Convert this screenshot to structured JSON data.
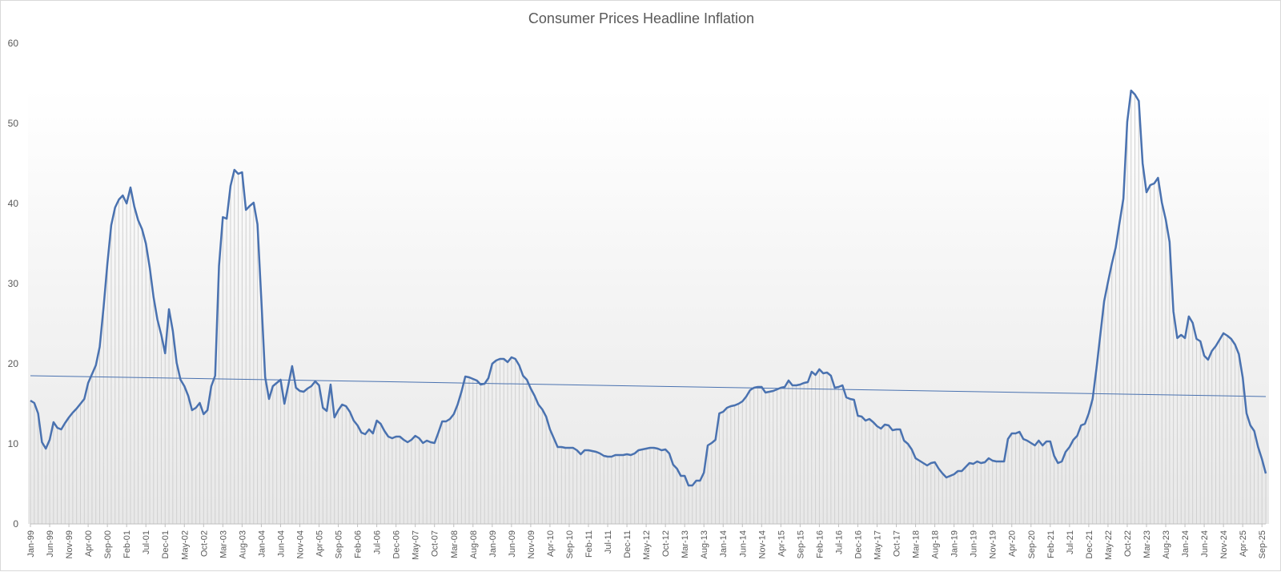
{
  "chart_data": {
    "type": "area",
    "title": "Consumer Prices Headline Inflation",
    "xlabel": "",
    "ylabel": "",
    "ylim": [
      0,
      60
    ],
    "yticks": [
      0,
      10,
      20,
      30,
      40,
      50,
      60
    ],
    "grid": false,
    "legend": "none",
    "line_color": "#4a72b0",
    "fill_color": "#d0d0d0",
    "x_tick_labels": [
      "Jan-99",
      "Jun-99",
      "Nov-99",
      "Apr-00",
      "Sep-00",
      "Feb-01",
      "Jul-01",
      "Dec-01",
      "May-02",
      "Oct-02",
      "Mar-03",
      "Aug-03",
      "Jan-04",
      "Jun-04",
      "Nov-04",
      "Apr-05",
      "Sep-05",
      "Feb-06",
      "Jul-06",
      "Dec-06",
      "May-07",
      "Oct-07",
      "Mar-08",
      "Aug-08",
      "Jan-09",
      "Jun-09",
      "Nov-09",
      "Apr-10",
      "Sep-10",
      "Feb-11",
      "Jul-11",
      "Dec-11",
      "May-12",
      "Oct-12",
      "Mar-13",
      "Aug-13",
      "Jan-14",
      "Jun-14",
      "Nov-14",
      "Apr-15",
      "Sep-15",
      "Feb-16",
      "Jul-16",
      "Dec-16",
      "May-17",
      "Oct-17",
      "Mar-18",
      "Aug-18",
      "Jan-19",
      "Jun-19",
      "Nov-19",
      "Apr-20",
      "Sep-20",
      "Feb-21",
      "Jul-21",
      "Dec-21",
      "May-22",
      "Oct-22",
      "Mar-23",
      "Aug-23",
      "Jan-24",
      "Jun-24",
      "Nov-24",
      "Apr-25",
      "Sep-25"
    ],
    "x_start": "1999-01",
    "series": [
      {
        "values": [
          15.4,
          15.1,
          13.8,
          10.2,
          9.4,
          10.5,
          12.7,
          12.0,
          11.8,
          12.6,
          13.3,
          13.9,
          14.4,
          15.0,
          15.6,
          17.6,
          18.7,
          19.8,
          22.1,
          27.0,
          32.5,
          37.3,
          39.5,
          40.5,
          41.0,
          40.0,
          42.0,
          39.6,
          37.9,
          36.8,
          35.0,
          32.0,
          28.3,
          25.5,
          23.6,
          21.3,
          26.8,
          24.1,
          20.1,
          18.0,
          17.2,
          16.0,
          14.2,
          14.5,
          15.1,
          13.7,
          14.2,
          17.2,
          18.5,
          32.2,
          38.3,
          38.1,
          42.2,
          44.2,
          43.7,
          43.9,
          39.2,
          39.7,
          40.1,
          37.4,
          28.0,
          18.3,
          15.6,
          17.2,
          17.6,
          18.0,
          15.0,
          17.3,
          19.7,
          17.0,
          16.6,
          16.5,
          16.9,
          17.2,
          17.8,
          17.3,
          14.5,
          14.1,
          17.4,
          13.3,
          14.2,
          14.9,
          14.7,
          14.0,
          12.9,
          12.3,
          11.4,
          11.2,
          11.8,
          11.3,
          12.9,
          12.5,
          11.6,
          10.9,
          10.7,
          10.9,
          10.9,
          10.5,
          10.2,
          10.5,
          11.0,
          10.7,
          10.1,
          10.4,
          10.2,
          10.1,
          11.4,
          12.8,
          12.8,
          13.1,
          13.7,
          14.9,
          16.5,
          18.4,
          18.3,
          18.1,
          17.9,
          17.4,
          17.5,
          18.2,
          20.0,
          20.4,
          20.6,
          20.6,
          20.2,
          20.8,
          20.6,
          19.8,
          18.5,
          18.0,
          16.9,
          16.0,
          14.9,
          14.3,
          13.4,
          11.8,
          10.7,
          9.6,
          9.6,
          9.5,
          9.5,
          9.5,
          9.2,
          8.7,
          9.2,
          9.2,
          9.1,
          9.0,
          8.8,
          8.5,
          8.4,
          8.4,
          8.6,
          8.6,
          8.6,
          8.7,
          8.6,
          8.8,
          9.2,
          9.3,
          9.4,
          9.5,
          9.5,
          9.4,
          9.2,
          9.3,
          8.8,
          7.4,
          6.9,
          6.0,
          6.0,
          4.8,
          4.8,
          5.4,
          5.4,
          6.4,
          9.8,
          10.1,
          10.5,
          13.8,
          14.0,
          14.5,
          14.7,
          14.8,
          15.0,
          15.3,
          15.9,
          16.7,
          17.0,
          17.1,
          17.1,
          16.4,
          16.5,
          16.6,
          16.8,
          17.0,
          17.1,
          17.9,
          17.3,
          17.3,
          17.4,
          17.6,
          17.7,
          19.0,
          18.6,
          19.3,
          18.8,
          18.9,
          18.5,
          17.0,
          17.1,
          17.3,
          15.8,
          15.6,
          15.5,
          13.5,
          13.4,
          12.9,
          13.1,
          12.7,
          12.2,
          11.9,
          12.4,
          12.3,
          11.7,
          11.8,
          11.8,
          10.4,
          10.0,
          9.3,
          8.2,
          7.9,
          7.6,
          7.3,
          7.6,
          7.7,
          6.9,
          6.3,
          5.8,
          6.0,
          6.2,
          6.6,
          6.6,
          7.1,
          7.6,
          7.5,
          7.8,
          7.6,
          7.7,
          8.2,
          7.9,
          7.8,
          7.8,
          7.8,
          10.6,
          11.3,
          11.3,
          11.5,
          10.6,
          10.4,
          10.1,
          9.8,
          10.4,
          9.8,
          10.3,
          10.3,
          8.5,
          7.6,
          7.8,
          9.0,
          9.6,
          10.5,
          11.0,
          12.3,
          12.5,
          13.8,
          15.6,
          19.4,
          23.6,
          27.8,
          30.2,
          32.5,
          34.5,
          37.6,
          40.6,
          50.2,
          54.1,
          53.6,
          52.8,
          45.0,
          41.4,
          42.3,
          42.5,
          43.2,
          40.1,
          38.0,
          35.2,
          26.5,
          23.2,
          23.6,
          23.2,
          25.9,
          25.1,
          23.1,
          22.8,
          21.0,
          20.5,
          21.6,
          22.2,
          23.0,
          23.8,
          23.5,
          23.1,
          22.4,
          21.2,
          18.3,
          13.8,
          12.3,
          11.6,
          9.6,
          8.1,
          6.3
        ]
      }
    ],
    "trendline": {
      "start": 18.5,
      "end": 15.9
    }
  }
}
